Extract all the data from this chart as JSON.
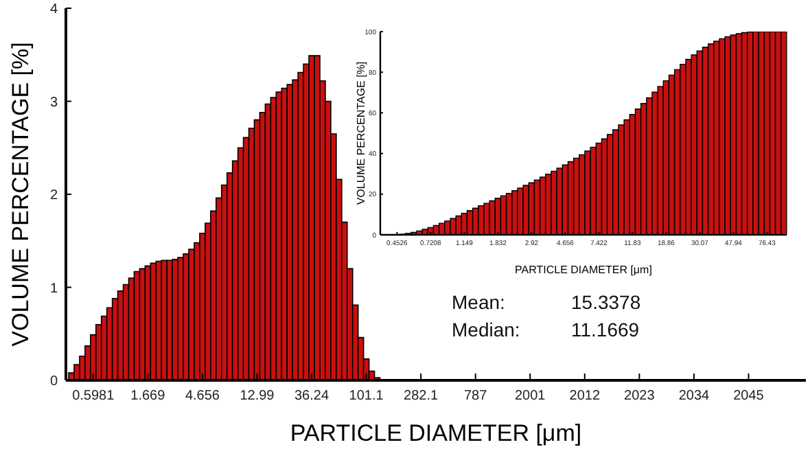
{
  "chart_data": [
    {
      "type": "bar",
      "ylabel": "VOLUME PERCENTAGE [%]",
      "xlabel": "PARTICLE DIAMETER [μm]",
      "color": "#c81010",
      "ylim": [
        0,
        4
      ],
      "yticks": [
        0,
        1,
        2,
        3,
        4
      ],
      "categories": [
        null,
        null,
        null,
        null,
        "0.5981",
        null,
        null,
        null,
        null,
        null,
        null,
        null,
        null,
        null,
        "1.669",
        null,
        null,
        null,
        null,
        null,
        null,
        null,
        null,
        null,
        "4.656",
        null,
        null,
        null,
        null,
        null,
        null,
        null,
        null,
        null,
        "12.99",
        null,
        null,
        null,
        null,
        null,
        null,
        null,
        null,
        null,
        "36.24",
        null,
        null,
        null,
        null,
        null,
        null,
        null,
        null,
        null,
        "101.1",
        null,
        null,
        null,
        null,
        null,
        null,
        null,
        null,
        null,
        "282.1",
        null,
        null,
        null,
        null,
        null,
        null,
        null,
        null,
        null,
        "787",
        null,
        null,
        null,
        null,
        null,
        null,
        null,
        null,
        null,
        "2001",
        null,
        null,
        null,
        null,
        null,
        null,
        null,
        null,
        null,
        "2012",
        null,
        null,
        null,
        null,
        null,
        null,
        null,
        null,
        null,
        "2023",
        null,
        null,
        null,
        null,
        null,
        null,
        null,
        null,
        null,
        "2034",
        null,
        null,
        null,
        null,
        null,
        null,
        null,
        null,
        null,
        "2045",
        null,
        null,
        null,
        null,
        null,
        null,
        null,
        null,
        null,
        null
      ],
      "values": [
        0.08,
        0.17,
        0.26,
        0.37,
        0.49,
        0.6,
        0.69,
        0.78,
        0.88,
        0.96,
        1.03,
        1.1,
        1.17,
        1.2,
        1.23,
        1.26,
        1.28,
        1.29,
        1.29,
        1.3,
        1.32,
        1.36,
        1.41,
        1.48,
        1.58,
        1.69,
        1.82,
        1.96,
        2.1,
        2.23,
        2.36,
        2.5,
        2.61,
        2.71,
        2.8,
        2.88,
        2.97,
        3.04,
        3.1,
        3.14,
        3.18,
        3.23,
        3.31,
        3.4,
        3.49,
        3.49,
        3.22,
        3.0,
        2.65,
        2.16,
        1.7,
        1.2,
        0.81,
        0.46,
        0.23,
        0.1,
        0.03,
        null,
        null,
        null,
        null,
        null,
        null,
        null,
        null,
        null,
        null,
        null,
        null,
        null,
        null,
        null,
        null,
        null,
        null,
        null,
        null,
        null,
        null,
        null,
        null,
        null,
        null,
        null,
        null,
        null,
        null,
        null,
        null,
        null,
        null,
        null,
        null,
        null,
        null,
        null,
        null,
        null,
        null,
        null,
        null,
        null,
        null,
        null,
        null,
        null,
        null,
        null,
        null,
        null,
        null,
        null,
        null,
        null,
        null,
        null,
        null,
        null,
        null,
        null,
        null,
        null,
        null,
        null,
        null,
        null,
        null,
        null,
        null,
        null,
        null,
        null,
        null,
        null,
        null
      ],
      "annotations": [
        "Mean:",
        "15.3378",
        "Median:",
        "11.1669"
      ]
    },
    {
      "type": "bar",
      "ylabel": "VOLUME PERCENTAGE [%]",
      "xlabel": "PARTICLE DIAMETER [μm]",
      "color": "#c81010",
      "ylim": [
        0,
        100
      ],
      "yticks": [
        0,
        20,
        40,
        60,
        80,
        100
      ],
      "categories": [
        null,
        null,
        "0.4526",
        null,
        null,
        null,
        null,
        null,
        "0.7208",
        null,
        null,
        null,
        null,
        null,
        "1.149",
        null,
        null,
        null,
        null,
        null,
        "1.832",
        null,
        null,
        null,
        null,
        null,
        "2.92",
        null,
        null,
        null,
        null,
        null,
        "4.656",
        null,
        null,
        null,
        null,
        null,
        "7.422",
        null,
        null,
        null,
        null,
        null,
        "11.83",
        null,
        null,
        null,
        null,
        null,
        "18.86",
        null,
        null,
        null,
        null,
        null,
        "30.07",
        null,
        null,
        null,
        null,
        null,
        "47.94",
        null,
        null,
        null,
        null,
        null,
        "76.43",
        null,
        null,
        null
      ],
      "values": [
        0,
        0,
        0.1,
        0.3,
        0.7,
        1.2,
        1.9,
        2.7,
        3.6,
        4.6,
        5.7,
        6.8,
        8,
        9.3,
        10.6,
        11.9,
        13.1,
        14.3,
        15.5,
        16.7,
        18,
        19.2,
        20.4,
        21.7,
        23,
        24.3,
        25.6,
        27,
        28.4,
        29.8,
        31.3,
        32.8,
        34.4,
        36,
        37.7,
        39.4,
        41.2,
        43.1,
        45.1,
        47.2,
        49.4,
        51.7,
        54.1,
        56.6,
        59.2,
        61.9,
        64.6,
        67.4,
        70.2,
        73,
        75.8,
        78.6,
        81.3,
        83.9,
        86.3,
        88.5,
        90.5,
        92.3,
        93.9,
        95.3,
        96.5,
        97.5,
        98.3,
        99,
        99.5,
        99.8,
        100,
        100,
        100,
        100,
        100,
        100
      ]
    }
  ]
}
